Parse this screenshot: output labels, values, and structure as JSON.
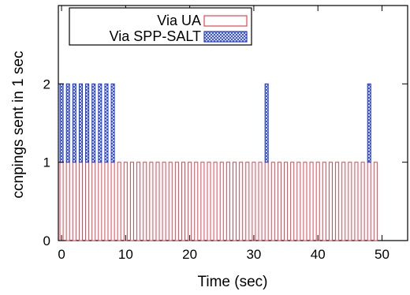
{
  "chart_data": {
    "type": "bar",
    "xlabel": "Time (sec)",
    "ylabel": "ccnpings sent in 1 sec",
    "xlim": [
      -0.5,
      54
    ],
    "ylim": [
      0,
      3
    ],
    "xticks": [
      0,
      10,
      20,
      30,
      40,
      50
    ],
    "yticks": [
      0,
      1,
      2
    ],
    "stacked": true,
    "grid": false,
    "legend_position": "top-left",
    "categories_description": "1-second intervals starting at t = 0 .. 49",
    "series": [
      {
        "name": "Via UA",
        "color": "#e8434f",
        "style": "outlined bar",
        "x": [
          0,
          1,
          2,
          3,
          4,
          5,
          6,
          7,
          8,
          9,
          10,
          11,
          12,
          13,
          14,
          15,
          16,
          17,
          18,
          19,
          20,
          21,
          22,
          23,
          24,
          25,
          26,
          27,
          28,
          29,
          30,
          31,
          32,
          33,
          34,
          35,
          36,
          37,
          38,
          39,
          40,
          41,
          42,
          43,
          44,
          45,
          46,
          47,
          48,
          49
        ],
        "values": [
          1,
          1,
          1,
          1,
          1,
          1,
          1,
          1,
          1,
          1,
          1,
          1,
          1,
          1,
          1,
          1,
          1,
          1,
          1,
          1,
          1,
          1,
          1,
          1,
          1,
          1,
          1,
          1,
          1,
          1,
          1,
          1,
          1,
          1,
          1,
          1,
          1,
          1,
          1,
          1,
          1,
          1,
          1,
          1,
          1,
          1,
          1,
          1,
          1,
          1
        ]
      },
      {
        "name": "Via SPP-SALT",
        "color": "#1f3bd6",
        "style": "cross-hatched bar",
        "x": [
          0,
          1,
          2,
          3,
          4,
          5,
          6,
          7,
          8,
          9,
          10,
          11,
          12,
          13,
          14,
          15,
          16,
          17,
          18,
          19,
          20,
          21,
          22,
          23,
          24,
          25,
          26,
          27,
          28,
          29,
          30,
          31,
          32,
          33,
          34,
          35,
          36,
          37,
          38,
          39,
          40,
          41,
          42,
          43,
          44,
          45,
          46,
          47,
          48,
          49
        ],
        "values": [
          1,
          1,
          1,
          1,
          1,
          1,
          1,
          1,
          1,
          0,
          0,
          0,
          0,
          0,
          0,
          0,
          0,
          0,
          0,
          0,
          0,
          0,
          0,
          0,
          0,
          0,
          0,
          0,
          0,
          0,
          0,
          0,
          1,
          0,
          0,
          0,
          0,
          0,
          0,
          0,
          0,
          0,
          0,
          0,
          0,
          0,
          0,
          0,
          1,
          0
        ]
      }
    ]
  }
}
